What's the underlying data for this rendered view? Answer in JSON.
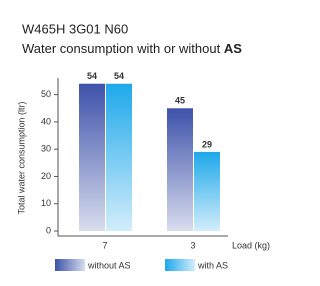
{
  "chart_data": {
    "type": "bar",
    "title": "W465H 3G01 N60",
    "subtitle": "Water consumption with or without",
    "subtitle_emphasis": "AS",
    "y_label": "Total water consumption (ltr)",
    "x_label": "Load (kg)",
    "categories": [
      "7",
      "3"
    ],
    "series": [
      {
        "name": "without AS",
        "color": "#3d52aa",
        "values": [
          54,
          45
        ]
      },
      {
        "name": "with AS",
        "color": "#1ea8ea",
        "values": [
          54,
          29
        ]
      }
    ],
    "ylim": [
      0,
      55
    ],
    "yticks": [
      0,
      10,
      20,
      30,
      40,
      50
    ]
  }
}
